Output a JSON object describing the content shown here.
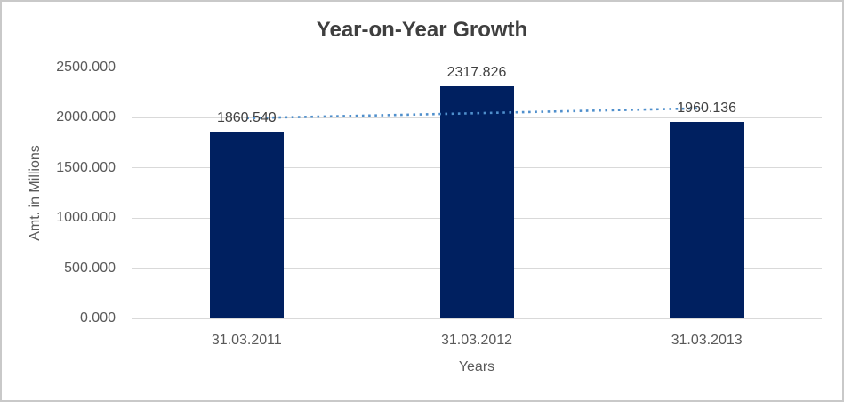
{
  "chart_data": {
    "type": "bar",
    "title": "Year-on-Year Growth",
    "xlabel": "Years",
    "ylabel": "Amt. in Millions",
    "categories": [
      "31.03.2011",
      "31.03.2012",
      "31.03.2013"
    ],
    "values": [
      1860.54,
      2317.826,
      1960.136
    ],
    "data_labels": [
      "1860.540",
      "2317.826",
      "1960.136"
    ],
    "ylim": [
      0,
      2500
    ],
    "ytick_step": 500,
    "ytick_labels": [
      "0.000",
      "500.000",
      "1000.000",
      "1500.000",
      "2000.000",
      "2500.000"
    ],
    "grid": true,
    "legend": "none",
    "trendline": {
      "type": "linear",
      "style": "dotted",
      "start_value": 1996.37,
      "end_value": 2095.97
    },
    "colors": {
      "bar": "#002060",
      "trendline": "#4f8fcc",
      "gridline": "#d9d9d9",
      "title_text": "#3f3f3f",
      "axis_text": "#595959",
      "value_label_text": "#404040",
      "border": "#c9c9c9",
      "background": "#ffffff"
    }
  }
}
